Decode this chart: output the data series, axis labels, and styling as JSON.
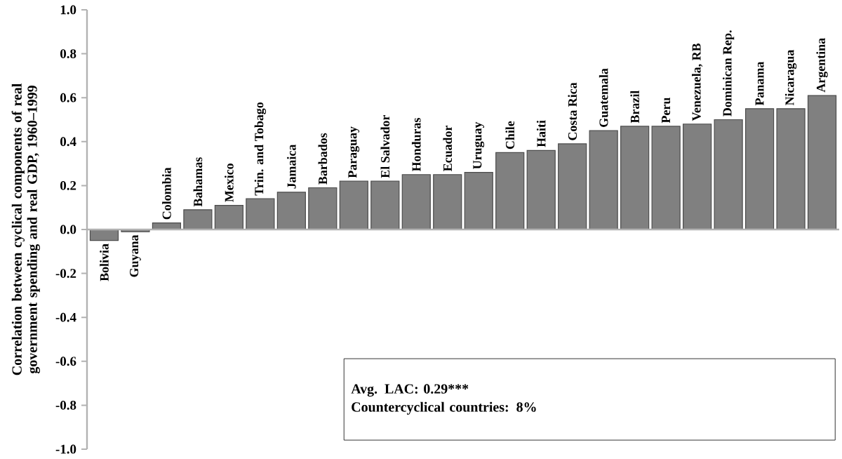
{
  "chart_data": {
    "type": "bar",
    "ylabel": "Correlation between cyclical components of real government spending and real GDP, 1960–1999",
    "categories": [
      "Bolivia",
      "Guyana",
      "Colombia",
      "Bahamas",
      "Mexico",
      "Trin. and Tobago",
      "Jamaica",
      "Barbados",
      "Paraguay",
      "El Salvador",
      "Honduras",
      "Ecuador",
      "Uruguay",
      "Chile",
      "Haiti",
      "Costa Rica",
      "Guatemala",
      "Brazil",
      "Peru",
      "Venezuela, RB",
      "Dominican Rep.",
      "Panama",
      "Nicaragua",
      "Argentina"
    ],
    "values": [
      -0.05,
      -0.01,
      0.03,
      0.09,
      0.11,
      0.14,
      0.17,
      0.19,
      0.22,
      0.22,
      0.25,
      0.25,
      0.26,
      0.35,
      0.36,
      0.39,
      0.45,
      0.47,
      0.47,
      0.48,
      0.5,
      0.55,
      0.55,
      0.61
    ],
    "color": "#808080",
    "ylim": [
      -1.0,
      1.0
    ],
    "yticks": [
      {
        "value": -1.0,
        "label": "-1.0"
      },
      {
        "value": -0.8,
        "label": "-0.8"
      },
      {
        "value": -0.6,
        "label": "-0.6"
      },
      {
        "value": -0.4,
        "label": "-0.4"
      },
      {
        "value": -0.2,
        "label": "-0.2"
      },
      {
        "value": 0,
        "label": "0.0"
      },
      {
        "value": 0.2,
        "label": "0.2"
      },
      {
        "value": 0.4,
        "label": "0.4"
      },
      {
        "value": 0.6,
        "label": "0.6"
      },
      {
        "value": 0.8,
        "label": "0.8"
      },
      {
        "value": 1.0,
        "label": "1.0"
      }
    ],
    "annotations": [
      "Avg. LAC: 0.29***",
      "Countercyclical countries: 8%"
    ]
  }
}
